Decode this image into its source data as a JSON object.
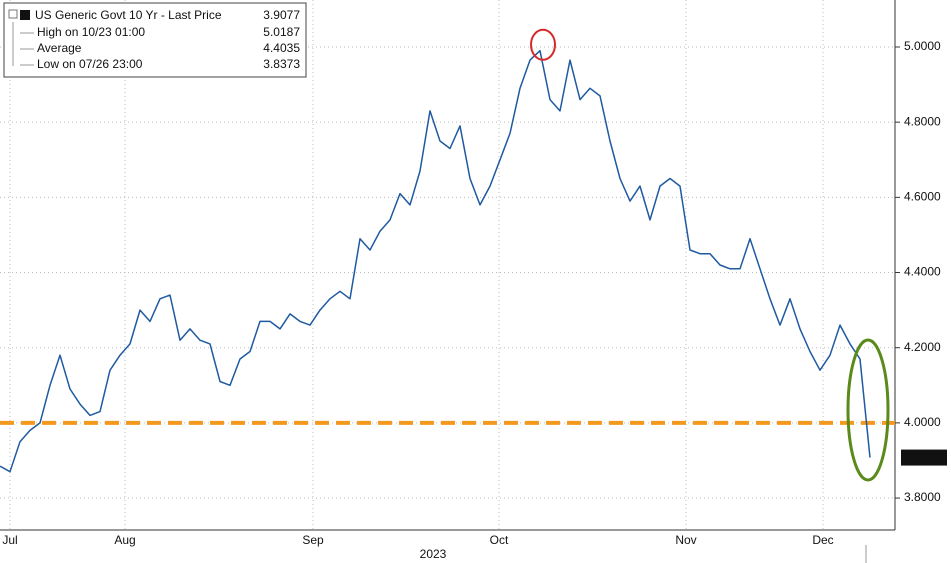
{
  "chart_data": {
    "type": "line",
    "legend_title": "US Generic Govt 10 Yr - Last Price",
    "legend_items": [
      {
        "label": "High on 10/23 01:00",
        "value": 5.0187
      },
      {
        "label": "Average",
        "value": 4.4035
      },
      {
        "label": "Low on 07/26 23:00",
        "value": 3.8373
      }
    ],
    "xlabel": "2023",
    "series": [
      {
        "name": "US Generic Govt 10 Yr",
        "color": "#1f5aa0",
        "values": [
          3.885,
          3.87,
          3.95,
          3.98,
          4.0,
          4.1,
          4.18,
          4.09,
          4.05,
          4.02,
          4.03,
          4.14,
          4.18,
          4.21,
          4.3,
          4.27,
          4.33,
          4.34,
          4.22,
          4.25,
          4.22,
          4.21,
          4.11,
          4.1,
          4.17,
          4.19,
          4.27,
          4.27,
          4.25,
          4.29,
          4.27,
          4.26,
          4.3,
          4.33,
          4.35,
          4.33,
          4.49,
          4.46,
          4.51,
          4.54,
          4.61,
          4.58,
          4.67,
          4.83,
          4.75,
          4.73,
          4.79,
          4.65,
          4.58,
          4.63,
          4.7,
          4.77,
          4.89,
          4.965,
          4.99,
          4.86,
          4.83,
          4.965,
          4.86,
          4.89,
          4.87,
          4.75,
          4.65,
          4.59,
          4.63,
          4.54,
          4.63,
          4.65,
          4.63,
          4.46,
          4.45,
          4.45,
          4.42,
          4.41,
          4.41,
          4.49,
          4.41,
          4.33,
          4.26,
          4.33,
          4.25,
          4.19,
          4.14,
          4.18,
          4.26,
          4.21,
          4.17,
          3.9077
        ]
      }
    ],
    "reference_line": {
      "value": 4.0,
      "color": "#f39a1e"
    },
    "xlim": [
      0,
      89.5
    ],
    "xticks": [
      {
        "value": 1,
        "label": "Jul"
      },
      {
        "value": 12.5,
        "label": "Aug"
      },
      {
        "value": 31.3,
        "label": "Sep"
      },
      {
        "value": 49.9,
        "label": "Oct"
      },
      {
        "value": 68.6,
        "label": "Nov"
      },
      {
        "value": 82.3,
        "label": "Dec"
      }
    ],
    "ylim": [
      3.715,
      5.125
    ],
    "yticks": [
      {
        "value": 3.8,
        "label": "3.8000"
      },
      {
        "value": 4.0,
        "label": "4.0000"
      },
      {
        "value": 4.2,
        "label": "4.2000"
      },
      {
        "value": 4.4,
        "label": "4.4000"
      },
      {
        "value": 4.6,
        "label": "4.6000"
      },
      {
        "value": 4.8,
        "label": "4.8000"
      },
      {
        "value": 5.0,
        "label": "5.0000"
      }
    ],
    "grid": true,
    "y_axis_side": "right"
  }
}
